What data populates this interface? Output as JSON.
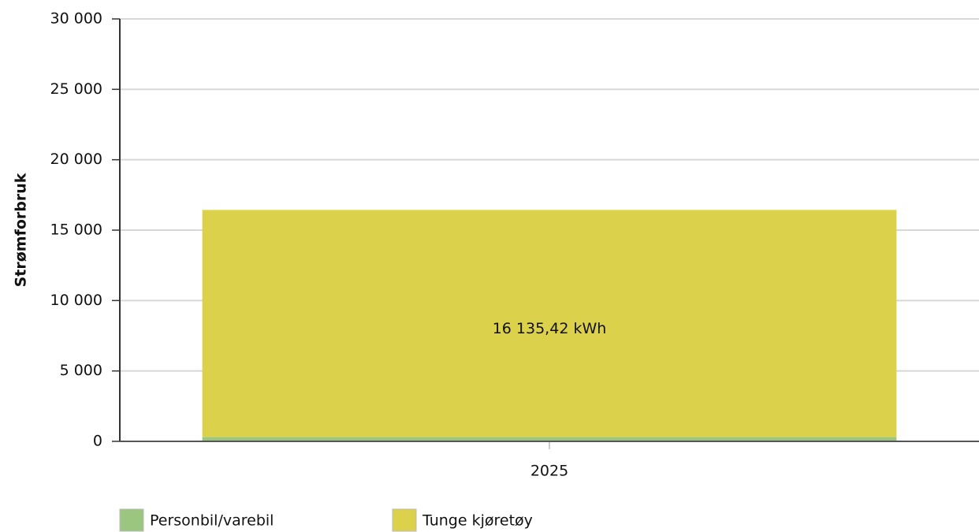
{
  "chart_data": {
    "type": "stacked_bar",
    "y_label": "Strømforbruk",
    "categories": [
      "2025"
    ],
    "series": [
      {
        "name": "Personbil/varebil",
        "color": "#9bc680",
        "values": [
          300
        ]
      },
      {
        "name": "Tunge kjøretøy",
        "color": "#dcd14a",
        "values": [
          16135.42
        ],
        "value_labels": [
          "16 135,42 kWh"
        ]
      }
    ],
    "ylim": [
      0,
      30000
    ],
    "yticks": [
      0,
      {
        "value": 5000,
        "label": "5 000"
      },
      {
        "value": 10000,
        "label": "10 000"
      },
      {
        "value": 15000,
        "label": "15 000"
      },
      {
        "value": 20000,
        "label": "20 000"
      },
      {
        "value": 25000,
        "label": "25 000"
      },
      {
        "value": 30000,
        "label": "30 000"
      }
    ],
    "grid": true
  }
}
